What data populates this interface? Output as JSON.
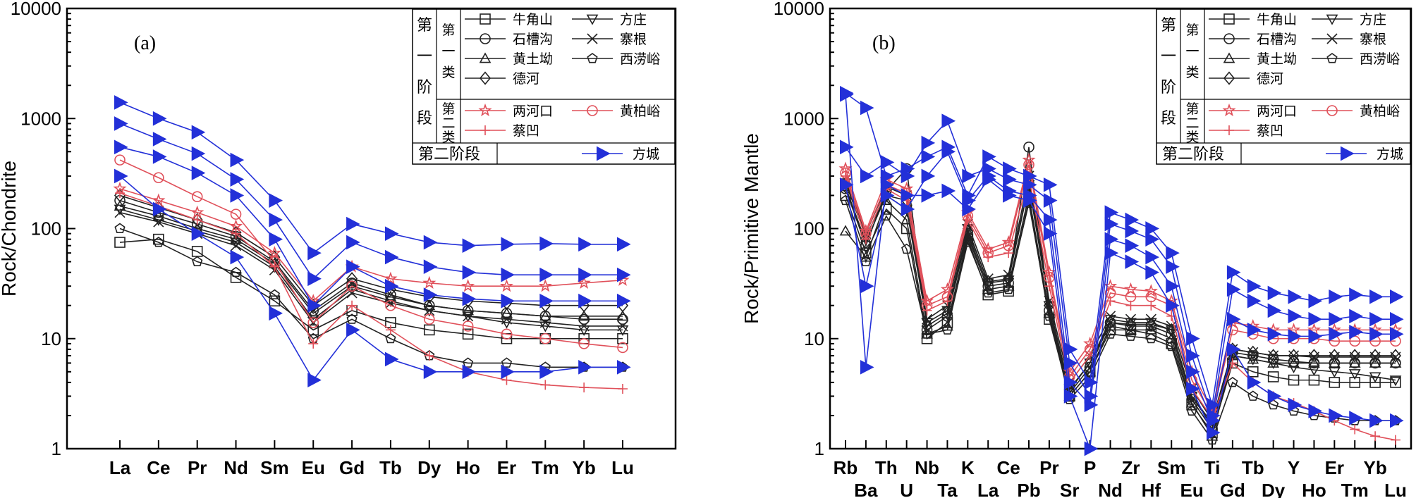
{
  "colors": {
    "axis": "#000000",
    "stage1_class1": "#222222",
    "stage1_class2": "#e0505a",
    "stage2": "#2330d8"
  },
  "legend": {
    "stage1_label_chars": [
      "第",
      "一",
      "阶",
      "段"
    ],
    "class1_label_chars": [
      "第",
      "一",
      "类"
    ],
    "class2_label_chars": [
      "第",
      "二",
      "类"
    ],
    "stage2_label": "第二阶段",
    "class1_items": [
      {
        "name": "牛角山",
        "marker": "square"
      },
      {
        "name": "方庄",
        "marker": "triangle-down"
      },
      {
        "name": "石槽沟",
        "marker": "circle"
      },
      {
        "name": "寨根",
        "marker": "cross"
      },
      {
        "name": "黄土坳",
        "marker": "triangle-up"
      },
      {
        "name": "西涝峪",
        "marker": "pentagon"
      },
      {
        "name": "德河",
        "marker": "diamond"
      }
    ],
    "class2_items": [
      {
        "name": "两河口",
        "marker": "star"
      },
      {
        "name": "黄柏峪",
        "marker": "circle"
      },
      {
        "name": "蔡凹",
        "marker": "plus"
      }
    ],
    "stage2_items": [
      {
        "name": "方城",
        "marker": "triangle-right"
      }
    ]
  },
  "chart_data": [
    {
      "type": "line",
      "panel_label": "(a)",
      "ylabel": "Rock/Chondrite",
      "yscale": "log",
      "ylim": [
        1,
        10000
      ],
      "yticks": [
        "1",
        "10",
        "100",
        "1000",
        "10000"
      ],
      "categories": [
        "La",
        "Ce",
        "Pr",
        "Nd",
        "Sm",
        "Eu",
        "Gd",
        "Tb",
        "Dy",
        "Ho",
        "Er",
        "Tm",
        "Yb",
        "Lu"
      ],
      "series": [
        {
          "name": "牛角山",
          "group": "stage1_class1",
          "marker": "square",
          "values": [
            75,
            80,
            62,
            36,
            22,
            12,
            18,
            14,
            12,
            11,
            10,
            10,
            10,
            10
          ]
        },
        {
          "name": "方庄",
          "group": "stage1_class1",
          "marker": "triangle-down",
          "values": [
            150,
            120,
            95,
            75,
            45,
            15,
            28,
            22,
            18,
            16,
            14,
            13,
            12,
            12
          ]
        },
        {
          "name": "石槽沟",
          "group": "stage1_class1",
          "marker": "circle",
          "values": [
            180,
            140,
            110,
            85,
            50,
            18,
            32,
            25,
            20,
            18,
            17,
            16,
            15,
            15
          ]
        },
        {
          "name": "寨根",
          "group": "stage1_class1",
          "marker": "cross",
          "values": [
            140,
            115,
            90,
            70,
            42,
            14,
            26,
            21,
            18,
            16,
            15,
            14,
            13,
            13
          ]
        },
        {
          "name": "黄土坳",
          "group": "stage1_class1",
          "marker": "triangle-up",
          "values": [
            160,
            130,
            100,
            80,
            48,
            17,
            30,
            24,
            20,
            18,
            17,
            16,
            16,
            16
          ]
        },
        {
          "name": "西涝峪",
          "group": "stage1_class1",
          "marker": "pentagon",
          "values": [
            100,
            75,
            50,
            40,
            25,
            10,
            15,
            10,
            7,
            6,
            6,
            5.5,
            5.5,
            5.5
          ]
        },
        {
          "name": "德河",
          "group": "stage1_class1",
          "marker": "diamond",
          "values": [
            200,
            155,
            120,
            92,
            55,
            20,
            35,
            28,
            24,
            22,
            21,
            20,
            20,
            20
          ]
        },
        {
          "name": "两河口",
          "group": "stage1_class2",
          "marker": "star",
          "values": [
            230,
            180,
            140,
            105,
            60,
            22,
            45,
            35,
            32,
            30,
            30,
            30,
            32,
            34
          ]
        },
        {
          "name": "黄柏峪",
          "group": "stage1_class2",
          "marker": "circle",
          "values": [
            420,
            290,
            195,
            135,
            50,
            14,
            30,
            20,
            15,
            13,
            11,
            10,
            9,
            8.3
          ]
        },
        {
          "name": "蔡凹",
          "group": "stage1_class2",
          "marker": "plus",
          "values": [
            210,
            160,
            120,
            90,
            45,
            9,
            20,
            12,
            7,
            5,
            4.2,
            3.8,
            3.6,
            3.5
          ]
        },
        {
          "name": "方城",
          "group": "stage2",
          "marker": "triangle-right",
          "values": [
            1400,
            1000,
            750,
            420,
            180,
            60,
            110,
            90,
            75,
            70,
            72,
            73,
            72,
            72
          ]
        },
        {
          "name": "方城",
          "group": "stage2",
          "marker": "triangle-right",
          "values": [
            900,
            650,
            480,
            280,
            120,
            35,
            75,
            55,
            45,
            40,
            38,
            38,
            38,
            38
          ]
        },
        {
          "name": "方城",
          "group": "stage2",
          "marker": "triangle-right",
          "values": [
            550,
            450,
            320,
            200,
            80,
            20,
            45,
            30,
            25,
            23,
            22,
            22,
            22,
            22
          ]
        },
        {
          "name": "方城",
          "group": "stage2",
          "marker": "triangle-right",
          "values": [
            300,
            150,
            90,
            55,
            17,
            4.2,
            12,
            6.5,
            5,
            5,
            5,
            5,
            5.5,
            5.5
          ]
        }
      ]
    },
    {
      "type": "line",
      "panel_label": "(b)",
      "ylabel": "Rock/Primitive Mantle",
      "yscale": "log",
      "ylim": [
        1,
        10000
      ],
      "yticks": [
        "1",
        "10",
        "100",
        "1000",
        "10000"
      ],
      "categories": [
        "Rb",
        "Ba",
        "Th",
        "U",
        "Nb",
        "Ta",
        "K",
        "La",
        "Ce",
        "Pb",
        "Pr",
        "Sr",
        "P",
        "Nd",
        "Zr",
        "Hf",
        "Sm",
        "Eu",
        "Ti",
        "Gd",
        "Tb",
        "Dy",
        "Y",
        "Ho",
        "Er",
        "Tm",
        "Yb",
        "Lu"
      ],
      "series": [
        {
          "name": "牛角山",
          "group": "stage1_class1",
          "marker": "square",
          "values": [
            200,
            60,
            150,
            100,
            10,
            14,
            80,
            25,
            27,
            180,
            15,
            3,
            5,
            12,
            12,
            11,
            9,
            2.5,
            1.4,
            6,
            5,
            4.5,
            4.2,
            4.2,
            4,
            4,
            4,
            4
          ]
        },
        {
          "name": "方庄",
          "group": "stage1_class1",
          "marker": "triangle-down",
          "values": [
            260,
            85,
            200,
            150,
            14,
            18,
            100,
            32,
            34,
            250,
            20,
            3.5,
            6,
            15,
            14,
            14,
            12,
            3,
            1.6,
            7,
            6.5,
            6,
            5.5,
            5.2,
            5,
            4.8,
            4.5,
            4.2
          ]
        },
        {
          "name": "石槽沟",
          "group": "stage1_class1",
          "marker": "circle",
          "values": [
            230,
            70,
            220,
            350,
            12,
            16,
            90,
            30,
            32,
            550,
            18,
            3.2,
            5.5,
            14,
            13,
            13,
            11,
            2.8,
            1.5,
            7.5,
            7,
            6.5,
            6.2,
            6,
            6,
            6,
            6,
            6
          ]
        },
        {
          "name": "寨根",
          "group": "stage1_class1",
          "marker": "cross",
          "values": [
            280,
            90,
            240,
            200,
            15,
            20,
            110,
            35,
            38,
            300,
            22,
            4,
            7,
            16,
            15,
            15,
            13,
            3.5,
            1.8,
            8,
            7.5,
            7,
            7,
            6.8,
            6.8,
            6.8,
            6.8,
            6.8
          ]
        },
        {
          "name": "黄土坳",
          "group": "stage1_class1",
          "marker": "triangle-up",
          "values": [
            95,
            55,
            180,
            120,
            11,
            13,
            85,
            28,
            30,
            200,
            17,
            3,
            5,
            13,
            12,
            12,
            10,
            2.6,
            1.3,
            7,
            6.5,
            6,
            6,
            6,
            6,
            6,
            6,
            6
          ]
        },
        {
          "name": "西涝峪",
          "group": "stage1_class1",
          "marker": "pentagon",
          "values": [
            180,
            50,
            130,
            65,
            11,
            12,
            75,
            26,
            28,
            170,
            16,
            2.8,
            4.5,
            11,
            10.5,
            10,
            8.5,
            2.2,
            1.2,
            4,
            3,
            2.5,
            2.2,
            2,
            1.9,
            1.8,
            1.8,
            1.8
          ]
        },
        {
          "name": "德河",
          "group": "stage1_class1",
          "marker": "diamond",
          "values": [
            240,
            75,
            200,
            180,
            13,
            17,
            95,
            33,
            35,
            260,
            20,
            3.4,
            6,
            14,
            13.5,
            13.5,
            12,
            3,
            1.7,
            8,
            7.5,
            7,
            7,
            7,
            7,
            7,
            7,
            7
          ]
        },
        {
          "name": "两河口",
          "group": "stage1_class2",
          "marker": "star",
          "values": [
            350,
            95,
            280,
            230,
            22,
            28,
            140,
            65,
            75,
            420,
            40,
            5,
            9,
            30,
            28,
            27,
            22,
            5,
            2.2,
            14,
            13,
            12,
            12,
            12,
            12,
            12,
            12,
            12
          ]
        },
        {
          "name": "黄柏峪",
          "group": "stage1_class2",
          "marker": "circle",
          "values": [
            320,
            90,
            250,
            210,
            20,
            24,
            130,
            60,
            70,
            380,
            36,
            4.5,
            8,
            26,
            24,
            24,
            20,
            4.2,
            2,
            12,
            11,
            10,
            10,
            10,
            9.5,
            9.5,
            9.5,
            9.5
          ]
        },
        {
          "name": "蔡凹",
          "group": "stage1_class2",
          "marker": "plus",
          "values": [
            300,
            80,
            230,
            180,
            18,
            22,
            120,
            55,
            60,
            300,
            30,
            4,
            7,
            22,
            20,
            20,
            16,
            3.5,
            1.9,
            6,
            4,
            3,
            2.6,
            2.2,
            1.8,
            1.5,
            1.3,
            1.2
          ]
        },
        {
          "name": "方城",
          "group": "stage2",
          "marker": "triangle-right",
          "values": [
            1700,
            1250,
            300,
            350,
            450,
            550,
            200,
            450,
            350,
            300,
            250,
            8,
            4,
            140,
            120,
            100,
            60,
            10,
            2.5,
            40,
            30,
            26,
            24,
            22,
            24,
            25,
            24,
            24
          ]
        },
        {
          "name": "方城",
          "group": "stage2",
          "marker": "triangle-right",
          "values": [
            550,
            300,
            400,
            300,
            600,
            950,
            300,
            350,
            280,
            250,
            180,
            6,
            3,
            110,
            95,
            80,
            45,
            7,
            2,
            28,
            22,
            18,
            16,
            15,
            15,
            16,
            15,
            15
          ]
        },
        {
          "name": "方城",
          "group": "stage2",
          "marker": "triangle-right",
          "values": [
            250,
            30,
            200,
            150,
            300,
            500,
            180,
            300,
            220,
            200,
            120,
            4,
            2.5,
            80,
            70,
            55,
            30,
            5,
            1.8,
            15,
            12,
            11,
            10.5,
            10.5,
            11,
            11.5,
            11,
            11
          ]
        },
        {
          "name": "方城",
          "group": "stage2",
          "marker": "triangle-right",
          "values": [
            1650,
            5.5,
            250,
            200,
            200,
            220,
            150,
            280,
            200,
            180,
            90,
            3,
            1,
            60,
            50,
            40,
            20,
            3.5,
            1.4,
            8,
            4,
            3,
            2.5,
            2.2,
            2,
            1.9,
            1.8,
            1.8
          ]
        }
      ]
    }
  ]
}
